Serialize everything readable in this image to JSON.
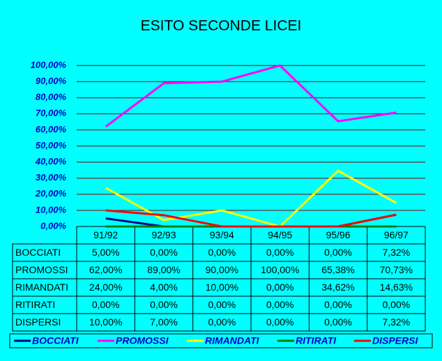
{
  "chart_data": {
    "type": "line",
    "title": "ESITO SECONDE LICEI",
    "categories": [
      "91/92",
      "92/93",
      "93/94",
      "94/95",
      "95/96",
      "96/97"
    ],
    "series": [
      {
        "name": "BOCCIATI",
        "color": "#000080",
        "values": [
          5,
          0,
          0,
          0,
          0,
          7.32
        ],
        "value_labels": [
          "5,00%",
          "0,00%",
          "0,00%",
          "0,00%",
          "0,00%",
          "7,32%"
        ]
      },
      {
        "name": "PROMOSSI",
        "color": "#ff00ff",
        "values": [
          62,
          89,
          90,
          100,
          65.38,
          70.73
        ],
        "value_labels": [
          "62,00%",
          "89,00%",
          "90,00%",
          "100,00%",
          "65,38%",
          "70,73%"
        ]
      },
      {
        "name": "RIMANDATI",
        "color": "#ffff00",
        "values": [
          24,
          4,
          10,
          0,
          34.62,
          14.63
        ],
        "value_labels": [
          "24,00%",
          "4,00%",
          "10,00%",
          "0,00%",
          "34,62%",
          "14,63%"
        ]
      },
      {
        "name": "RITIRATI",
        "color": "#008000",
        "values": [
          0,
          0,
          0,
          0,
          0,
          0
        ],
        "value_labels": [
          "0,00%",
          "0,00%",
          "0,00%",
          "0,00%",
          "0,00%",
          "0,00%"
        ]
      },
      {
        "name": "DISPERSI",
        "color": "#ff0000",
        "values": [
          10,
          7,
          0,
          0,
          0,
          7.32
        ],
        "value_labels": [
          "10,00%",
          "7,00%",
          "0,00%",
          "0,00%",
          "0,00%",
          "7,32%"
        ]
      }
    ],
    "ylim": [
      0,
      100
    ],
    "yticks": [
      {
        "value": 0,
        "label": "0,00%"
      },
      {
        "value": 10,
        "label": "10,00%"
      },
      {
        "value": 20,
        "label": "20,00%"
      },
      {
        "value": 30,
        "label": "30,00%"
      },
      {
        "value": 40,
        "label": "40,00%"
      },
      {
        "value": 50,
        "label": "50,00%"
      },
      {
        "value": 60,
        "label": "60,00%"
      },
      {
        "value": 70,
        "label": "70,00%"
      },
      {
        "value": 80,
        "label": "80,00%"
      },
      {
        "value": 90,
        "label": "90,00%"
      },
      {
        "value": 100,
        "label": "100,00%"
      }
    ],
    "grid": true,
    "grid_color": "#800000",
    "legend": "bottom"
  }
}
